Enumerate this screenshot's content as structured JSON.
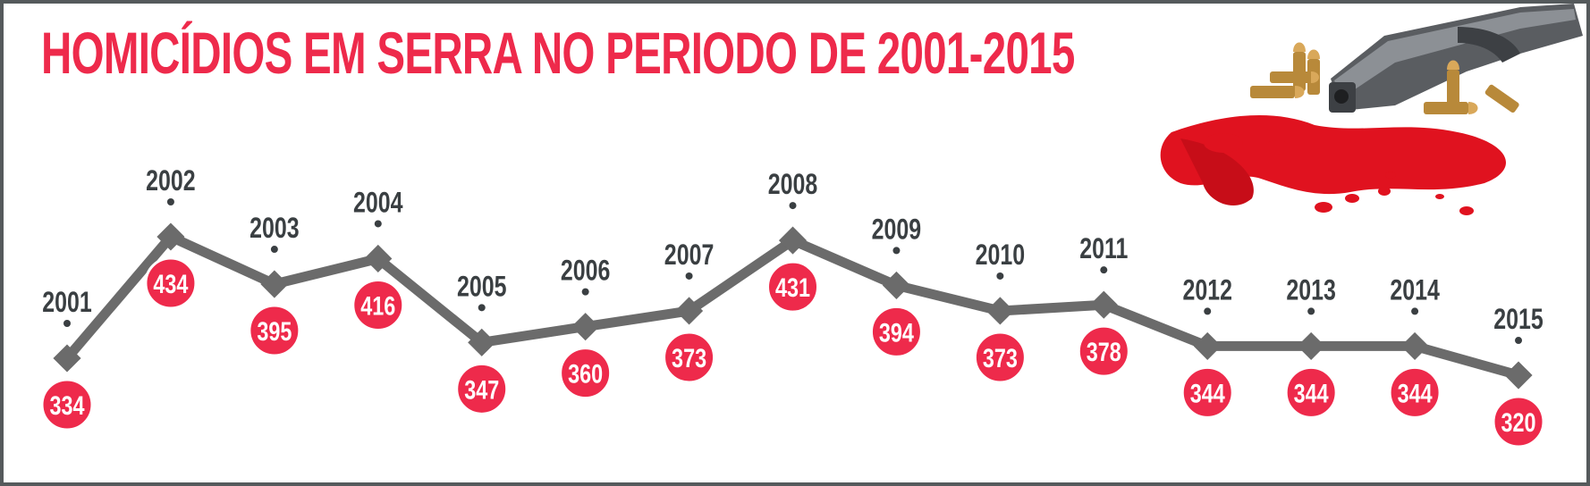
{
  "chart_data": {
    "type": "line",
    "title": "HOMICÍDIOS EM SERRA NO PERIODO DE 2001-2015",
    "x": [
      "2001",
      "2002",
      "2003",
      "2004",
      "2005",
      "2006",
      "2007",
      "2008",
      "2009",
      "2010",
      "2011",
      "2012",
      "2013",
      "2014",
      "2015"
    ],
    "values": [
      334,
      434,
      395,
      416,
      347,
      360,
      373,
      431,
      394,
      373,
      378,
      344,
      344,
      344,
      320
    ],
    "value_labels": [
      "334",
      "434",
      "395",
      "416",
      "347",
      "360",
      "373",
      "431",
      "394",
      "373",
      "378",
      "344",
      "344",
      "344",
      "320"
    ],
    "grid": false,
    "legend": "none"
  },
  "colors": {
    "title": "#ee2a4b",
    "line": "#6b6b6b",
    "marker": "#6b6b6b",
    "badge": "#ee2a4b",
    "badge_text": "#ffffff",
    "year_text": "#3a3f42",
    "frame": "#555a5c"
  },
  "decoration": {
    "icon": "gun-bullets-blood-icon"
  }
}
